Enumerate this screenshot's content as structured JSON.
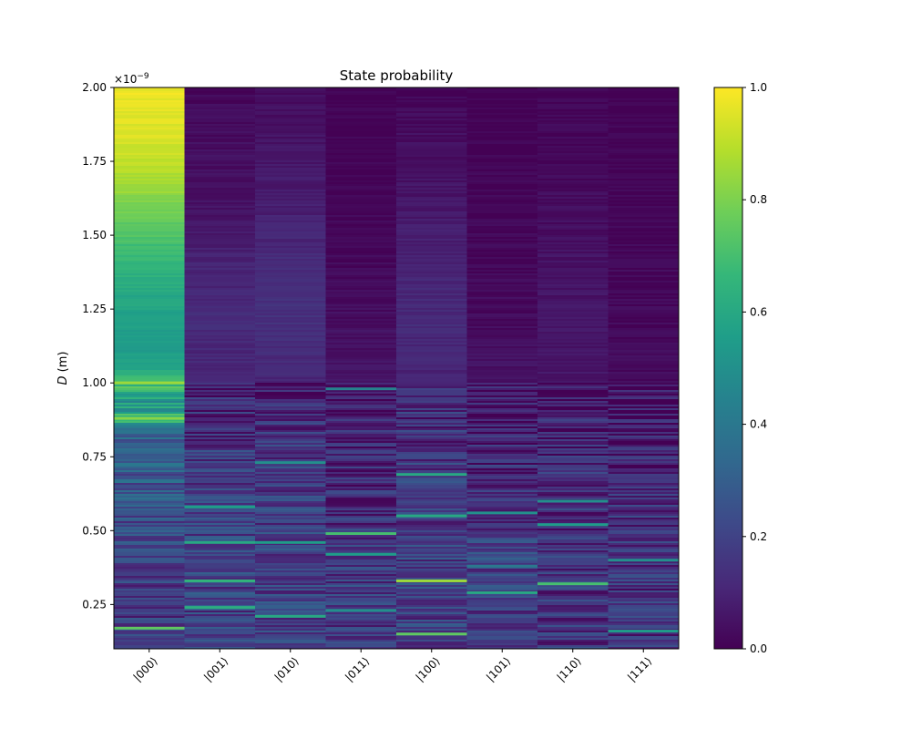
{
  "chart_data": {
    "type": "heatmap",
    "title": "State probability",
    "xlabel": "",
    "ylabel_italic": "D",
    "ylabel_unit": " (m)",
    "y_offset_mantissa": "×10",
    "y_offset_exponent": "−9",
    "categories": [
      "|000⟩",
      "|001⟩",
      "|010⟩",
      "|011⟩",
      "|100⟩",
      "|101⟩",
      "|110⟩",
      "|111⟩"
    ],
    "ylim": [
      0.1,
      2.0
    ],
    "y_ticks": [
      0.25,
      0.5,
      0.75,
      1.0,
      1.25,
      1.5,
      1.75,
      2.0
    ],
    "y_tick_labels": [
      "0.25",
      "0.50",
      "0.75",
      "1.00",
      "1.25",
      "1.50",
      "1.75",
      "2.00"
    ],
    "colorbar": {
      "range": [
        0.0,
        1.0
      ],
      "ticks": [
        0.0,
        0.2,
        0.4,
        0.6,
        0.8,
        1.0
      ],
      "tick_labels": [
        "0.0",
        "0.2",
        "0.4",
        "0.6",
        "0.8",
        "1.0"
      ],
      "colormap": [
        "#440154",
        "#482878",
        "#3e4989",
        "#31688e",
        "#26828e",
        "#1f9e89",
        "#35b779",
        "#6ece58",
        "#b5de2b",
        "#fde725"
      ]
    },
    "band_profiles": [
      {
        "state": "|000⟩",
        "D": [
          2.0,
          1.85,
          1.7,
          1.6,
          1.5,
          1.4,
          1.3,
          1.2,
          1.1,
          1.05,
          1.0,
          0.95,
          0.9,
          0.88,
          0.85,
          0.7,
          0.5,
          0.3,
          0.1
        ],
        "p": [
          0.97,
          0.95,
          0.88,
          0.8,
          0.72,
          0.65,
          0.6,
          0.56,
          0.55,
          0.58,
          0.75,
          0.55,
          0.52,
          0.8,
          0.35,
          0.28,
          0.22,
          0.18,
          0.15
        ]
      },
      {
        "state": "|001⟩",
        "D": [
          2.0,
          1.6,
          1.4,
          1.2,
          1.0,
          0.8,
          0.6,
          0.4,
          0.1
        ],
        "p": [
          0.02,
          0.05,
          0.1,
          0.12,
          0.1,
          0.15,
          0.2,
          0.2,
          0.18
        ]
      },
      {
        "state": "|010⟩",
        "D": [
          2.0,
          1.6,
          1.4,
          1.2,
          1.0,
          0.8,
          0.6,
          0.4,
          0.1
        ],
        "p": [
          0.03,
          0.08,
          0.13,
          0.14,
          0.11,
          0.15,
          0.18,
          0.2,
          0.18
        ]
      },
      {
        "state": "|011⟩",
        "D": [
          2.0,
          1.6,
          1.4,
          1.2,
          1.0,
          0.8,
          0.6,
          0.4,
          0.1
        ],
        "p": [
          0.0,
          0.01,
          0.02,
          0.04,
          0.05,
          0.1,
          0.12,
          0.18,
          0.16
        ]
      },
      {
        "state": "|100⟩",
        "D": [
          2.0,
          1.6,
          1.4,
          1.2,
          1.0,
          0.8,
          0.6,
          0.4,
          0.1
        ],
        "p": [
          0.02,
          0.06,
          0.1,
          0.12,
          0.1,
          0.14,
          0.17,
          0.19,
          0.18
        ]
      },
      {
        "state": "|101⟩",
        "D": [
          2.0,
          1.6,
          1.4,
          1.2,
          1.0,
          0.8,
          0.6,
          0.4,
          0.1
        ],
        "p": [
          0.0,
          0.01,
          0.02,
          0.03,
          0.05,
          0.1,
          0.14,
          0.2,
          0.16
        ]
      },
      {
        "state": "|110⟩",
        "D": [
          2.0,
          1.6,
          1.4,
          1.2,
          1.0,
          0.8,
          0.6,
          0.4,
          0.1
        ],
        "p": [
          0.01,
          0.03,
          0.05,
          0.06,
          0.06,
          0.1,
          0.13,
          0.14,
          0.15
        ]
      },
      {
        "state": "|111⟩",
        "D": [
          2.0,
          1.6,
          1.4,
          1.2,
          1.0,
          0.8,
          0.6,
          0.4,
          0.1
        ],
        "p": [
          0.0,
          0.01,
          0.02,
          0.02,
          0.03,
          0.08,
          0.12,
          0.14,
          0.14
        ]
      }
    ],
    "highlight_rows": [
      {
        "state": "|000⟩",
        "D": 1.0,
        "p": 0.85
      },
      {
        "state": "|000⟩",
        "D": 0.88,
        "p": 0.82
      },
      {
        "state": "|000⟩",
        "D": 0.17,
        "p": 0.75
      },
      {
        "state": "|001⟩",
        "D": 0.58,
        "p": 0.55
      },
      {
        "state": "|001⟩",
        "D": 0.46,
        "p": 0.6
      },
      {
        "state": "|001⟩",
        "D": 0.33,
        "p": 0.65
      },
      {
        "state": "|001⟩",
        "D": 0.24,
        "p": 0.62
      },
      {
        "state": "|010⟩",
        "D": 0.73,
        "p": 0.5
      },
      {
        "state": "|010⟩",
        "D": 0.46,
        "p": 0.55
      },
      {
        "state": "|010⟩",
        "D": 0.21,
        "p": 0.6
      },
      {
        "state": "|011⟩",
        "D": 0.98,
        "p": 0.45
      },
      {
        "state": "|011⟩",
        "D": 0.49,
        "p": 0.7
      },
      {
        "state": "|011⟩",
        "D": 0.42,
        "p": 0.55
      },
      {
        "state": "|011⟩",
        "D": 0.23,
        "p": 0.5
      },
      {
        "state": "|100⟩",
        "D": 0.69,
        "p": 0.6
      },
      {
        "state": "|100⟩",
        "D": 0.55,
        "p": 0.6
      },
      {
        "state": "|100⟩",
        "D": 0.33,
        "p": 0.85
      },
      {
        "state": "|100⟩",
        "D": 0.15,
        "p": 0.75
      },
      {
        "state": "|101⟩",
        "D": 0.56,
        "p": 0.5
      },
      {
        "state": "|101⟩",
        "D": 0.38,
        "p": 0.4
      },
      {
        "state": "|101⟩",
        "D": 0.29,
        "p": 0.6
      },
      {
        "state": "|110⟩",
        "D": 0.6,
        "p": 0.5
      },
      {
        "state": "|110⟩",
        "D": 0.52,
        "p": 0.55
      },
      {
        "state": "|110⟩",
        "D": 0.32,
        "p": 0.7
      },
      {
        "state": "|111⟩",
        "D": 0.4,
        "p": 0.5
      },
      {
        "state": "|111⟩",
        "D": 0.16,
        "p": 0.55
      }
    ]
  }
}
